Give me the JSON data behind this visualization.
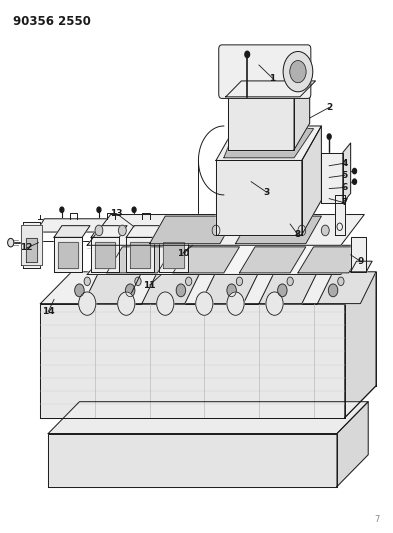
{
  "title": "90356 2550",
  "bg_color": "#ffffff",
  "line_color": "#1a1a1a",
  "fig_width": 3.93,
  "fig_height": 5.33,
  "dpi": 100,
  "label_positions": {
    "1": [
      0.695,
      0.855,
      0.66,
      0.88
    ],
    "2": [
      0.84,
      0.8,
      0.79,
      0.78
    ],
    "3": [
      0.68,
      0.64,
      0.64,
      0.66
    ],
    "4": [
      0.88,
      0.695,
      0.84,
      0.69
    ],
    "5": [
      0.88,
      0.672,
      0.84,
      0.668
    ],
    "6": [
      0.88,
      0.649,
      0.84,
      0.647
    ],
    "7": [
      0.88,
      0.62,
      0.84,
      0.628
    ],
    "8": [
      0.76,
      0.56,
      0.74,
      0.58
    ],
    "9": [
      0.92,
      0.51,
      0.895,
      0.522
    ],
    "10": [
      0.465,
      0.525,
      0.49,
      0.54
    ],
    "11": [
      0.38,
      0.465,
      0.41,
      0.485
    ],
    "12": [
      0.065,
      0.535,
      0.095,
      0.545
    ],
    "13": [
      0.295,
      0.6,
      0.34,
      0.575
    ],
    "14": [
      0.12,
      0.415,
      0.135,
      0.438
    ]
  }
}
